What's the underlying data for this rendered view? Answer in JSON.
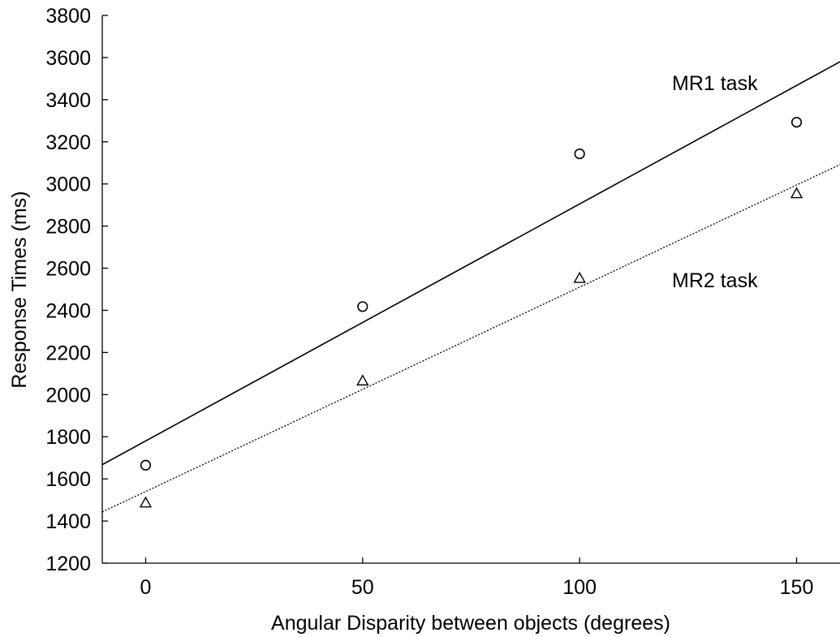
{
  "chart_data": {
    "type": "scatter",
    "xlabel": "Angular Disparity between objects (degrees)",
    "ylabel": "Response Times (ms)",
    "xlim": [
      -10,
      160
    ],
    "ylim": [
      1200,
      3800
    ],
    "xticks": [
      0,
      50,
      100,
      150
    ],
    "yticks": [
      1200,
      1400,
      1600,
      1800,
      2000,
      2200,
      2400,
      2600,
      2800,
      3000,
      3200,
      3400,
      3600,
      3800
    ],
    "grid": false,
    "series": [
      {
        "name": "MR1 task",
        "marker": "circle",
        "x": [
          0,
          50,
          100,
          150
        ],
        "y": [
          1665,
          2418,
          3143,
          3293
        ],
        "fit": {
          "style": "solid",
          "intercept": 1780,
          "slope": 11.25
        }
      },
      {
        "name": "MR2 task",
        "marker": "triangle",
        "x": [
          0,
          50,
          100,
          150
        ],
        "y": [
          1487,
          2066,
          2553,
          2955
        ],
        "fit": {
          "style": "dotted",
          "intercept": 1540,
          "slope": 9.7
        }
      }
    ],
    "colors": {
      "axis": "#000000",
      "marker": "#000000",
      "line": "#000000"
    }
  }
}
